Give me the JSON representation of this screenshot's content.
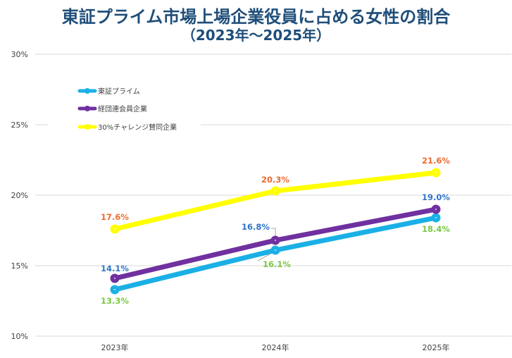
{
  "title": {
    "main": "東証プライム市場上場企業役員に占める女性の割合",
    "sub": "（2023年～2025年）"
  },
  "chart_data": {
    "type": "line",
    "title": "東証プライム市場上場企業役員に占める女性の割合（2023年～2025年）",
    "xlabel": "",
    "ylabel": "",
    "categories": [
      "2023年",
      "2024年",
      "2025年"
    ],
    "ylim": [
      10,
      30
    ],
    "yticks": [
      10,
      15,
      20,
      25,
      30
    ],
    "ytick_labels": [
      "10%",
      "15%",
      "20%",
      "25%",
      "30%"
    ],
    "grid": true,
    "legend_position": "top-left",
    "series": [
      {
        "name": "東証プライム",
        "color": "#1ab0e6",
        "values": [
          13.3,
          16.1,
          18.4
        ],
        "labels": [
          "13.3%",
          "16.1%",
          "18.4%"
        ],
        "label_color": "#7ac943"
      },
      {
        "name": "経団連会員企業",
        "color": "#7030a0",
        "values": [
          14.1,
          16.8,
          19.0
        ],
        "labels": [
          "14.1%",
          "16.8%",
          "19.0%"
        ],
        "label_color": "#2e75c8"
      },
      {
        "name": "30%チャレンジ賛同企業",
        "color": "#ffff00",
        "values": [
          17.6,
          20.3,
          21.6
        ],
        "labels": [
          "17.6%",
          "20.3%",
          "21.6%"
        ],
        "label_color": "#ed6b2f"
      }
    ]
  }
}
